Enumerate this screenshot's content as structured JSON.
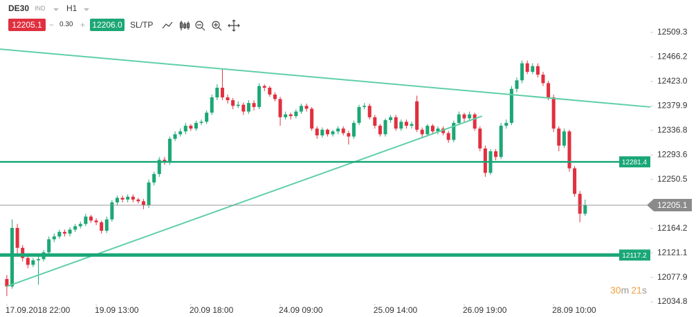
{
  "ui": {
    "symbol": "DE30",
    "symbol_type": "IND",
    "timeframe": "H1",
    "sell": "12205.1",
    "minus": "−",
    "spread": "0.30",
    "plus": "+",
    "buy": "12206.0",
    "sltp": "SL/TP",
    "timer_minutes": "30",
    "timer_minutes_unit": "m",
    "timer_seconds": "21",
    "timer_seconds_unit": "s"
  },
  "chart_data": {
    "type": "candlestick",
    "up_color": "#1ca775",
    "down_color": "#e0303f",
    "open": [
      12075,
      12062,
      12165,
      12130,
      12112,
      12100,
      12108,
      12110,
      12122,
      12145,
      12150,
      12158,
      12155,
      12162,
      12168,
      12172,
      12185,
      12178,
      12175,
      12160,
      12180,
      12210,
      12218,
      12215,
      12220,
      12215,
      12212,
      12205,
      12245,
      12260,
      12285,
      12280,
      12322,
      12330,
      12335,
      12345,
      12340,
      12350,
      12352,
      12368,
      12395,
      12412,
      12395,
      12390,
      12380,
      12382,
      12370,
      12385,
      12378,
      12415,
      12412,
      12400,
      12392,
      12360,
      12365,
      12362,
      12370,
      12380,
      12375,
      12340,
      12328,
      12338,
      12330,
      12335,
      12340,
      12332,
      12326,
      12350,
      12378,
      12380,
      12360,
      12345,
      12330,
      12355,
      12360,
      12340,
      12352,
      12345,
      12388,
      12338,
      12330,
      12345,
      12335,
      12340,
      12332,
      12320,
      12350,
      12365,
      12358,
      12365,
      12340,
      12305,
      12262,
      12300,
      12290,
      12345,
      12350,
      12410,
      12425,
      12455,
      12440,
      12450,
      12435,
      12420,
      12395,
      12340,
      12310,
      12335,
      12270,
      12225,
      12190
    ],
    "high": [
      12082,
      12180,
      12172,
      12135,
      12118,
      12112,
      12115,
      12126,
      12150,
      12155,
      12162,
      12162,
      12166,
      12172,
      12176,
      12190,
      12188,
      12182,
      12178,
      12185,
      12214,
      12222,
      12222,
      12224,
      12224,
      12218,
      12216,
      12250,
      12264,
      12290,
      12290,
      12326,
      12335,
      12340,
      12350,
      12348,
      12354,
      12356,
      12372,
      12400,
      12418,
      12445,
      12400,
      12394,
      12388,
      12386,
      12390,
      12390,
      12420,
      12418,
      12415,
      12404,
      12396,
      12370,
      12368,
      12374,
      12384,
      12384,
      12378,
      12344,
      12342,
      12340,
      12338,
      12344,
      12344,
      12336,
      12354,
      12382,
      12385,
      12384,
      12364,
      12348,
      12358,
      12364,
      12364,
      12356,
      12356,
      12352,
      12398,
      12342,
      12348,
      12348,
      12344,
      12344,
      12336,
      12354,
      12370,
      12368,
      12370,
      12368,
      12344,
      12310,
      12304,
      12304,
      12350,
      12356,
      12415,
      12430,
      12460,
      12460,
      12455,
      12455,
      12440,
      12424,
      12400,
      12344,
      12340,
      12338,
      12274,
      12230,
      12215
    ],
    "low": [
      12045,
      12058,
      12120,
      12106,
      12094,
      12096,
      12065,
      12106,
      12118,
      12140,
      12146,
      12150,
      12150,
      12158,
      12164,
      12168,
      12174,
      12170,
      12155,
      12156,
      12176,
      12205,
      12210,
      12210,
      12210,
      12208,
      12198,
      12200,
      12240,
      12255,
      12276,
      12276,
      12318,
      12326,
      12330,
      12336,
      12336,
      12346,
      12348,
      12364,
      12390,
      12390,
      12384,
      12374,
      12376,
      12364,
      12366,
      12372,
      12374,
      12406,
      12396,
      12388,
      12345,
      12356,
      12356,
      12358,
      12366,
      12370,
      12336,
      12322,
      12324,
      12326,
      12326,
      12330,
      12328,
      12312,
      12322,
      12346,
      12374,
      12356,
      12340,
      12326,
      12326,
      12350,
      12336,
      12336,
      12340,
      12340,
      12334,
      12324,
      12326,
      12330,
      12330,
      12328,
      12315,
      12316,
      12346,
      12352,
      12354,
      12336,
      12300,
      12255,
      12258,
      12284,
      12286,
      12340,
      12346,
      12404,
      12420,
      12436,
      12436,
      12430,
      12415,
      12390,
      12334,
      12300,
      12306,
      12264,
      12220,
      12175,
      12186
    ],
    "close": [
      12062,
      12165,
      12130,
      12112,
      12100,
      12108,
      12110,
      12122,
      12145,
      12150,
      12158,
      12155,
      12162,
      12168,
      12172,
      12185,
      12178,
      12175,
      12160,
      12180,
      12210,
      12218,
      12215,
      12220,
      12215,
      12212,
      12205,
      12245,
      12260,
      12285,
      12280,
      12322,
      12330,
      12335,
      12345,
      12340,
      12350,
      12352,
      12368,
      12395,
      12412,
      12395,
      12390,
      12380,
      12382,
      12370,
      12385,
      12378,
      12415,
      12412,
      12400,
      12392,
      12360,
      12365,
      12362,
      12370,
      12380,
      12375,
      12340,
      12328,
      12338,
      12330,
      12335,
      12340,
      12332,
      12326,
      12350,
      12378,
      12380,
      12360,
      12345,
      12330,
      12355,
      12360,
      12340,
      12352,
      12345,
      12348,
      12338,
      12330,
      12345,
      12335,
      12340,
      12332,
      12320,
      12350,
      12365,
      12358,
      12365,
      12340,
      12305,
      12262,
      12300,
      12290,
      12345,
      12350,
      12410,
      12425,
      12455,
      12440,
      12450,
      12435,
      12420,
      12395,
      12340,
      12310,
      12335,
      12270,
      12225,
      12190,
      12205
    ],
    "xlim": [
      -1.3,
      122.4
    ],
    "ylim": [
      12031.2,
      12566.5
    ],
    "xticks": [
      {
        "value": 0,
        "label": "17.09.2018 22:00"
      },
      {
        "value": 17,
        "label": "19.09 13:00"
      },
      {
        "value": 35,
        "label": "20.09 18:00"
      },
      {
        "value": 52,
        "label": "24.09 09:00"
      },
      {
        "value": 70,
        "label": "25.09 14:00"
      },
      {
        "value": 87,
        "label": "26.09 19:00"
      },
      {
        "value": 104,
        "label": "28.09 10:00"
      }
    ],
    "yticks": [
      12509.3,
      12466.2,
      {
        "value": 12423,
        "label": "12423.0"
      },
      12379.9,
      12336.8,
      12293.6,
      12250.5,
      12164.2,
      12121.1,
      12077.9,
      12034.8
    ],
    "levels": [
      {
        "value": 12281.4,
        "color": "#1aa777"
      },
      {
        "value": 12117.2,
        "color": "#1aa777"
      }
    ],
    "current": {
      "value": 12205.1,
      "color": "#8a8a8a"
    },
    "trendlines": [
      {
        "x": [
          -1.3,
          122.4
        ],
        "y": [
          12480,
          12378
        ],
        "color": "#5fcfa6"
      },
      {
        "x": [
          0,
          90.4
        ],
        "y": [
          12062,
          12362
        ],
        "color": "#5fcfa6"
      }
    ]
  }
}
